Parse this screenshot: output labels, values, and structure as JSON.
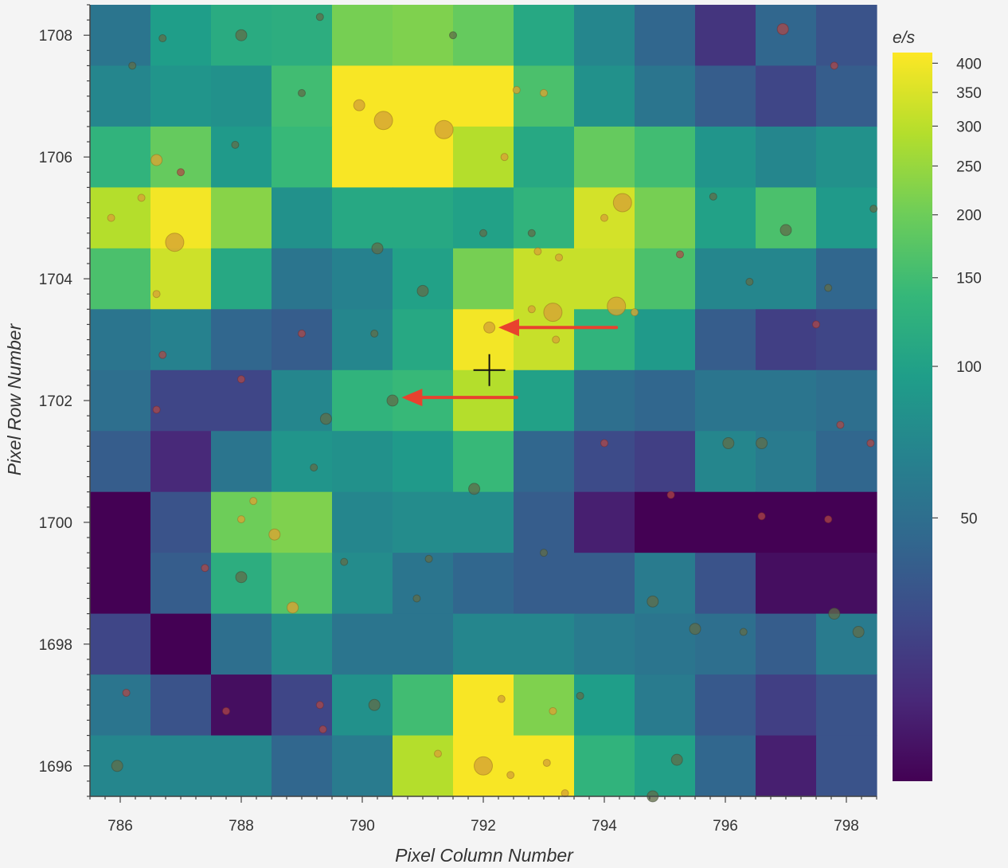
{
  "chart_data": {
    "type": "heatmap",
    "title": "",
    "xlabel": "Pixel Column Number",
    "ylabel": "Pixel Row Number",
    "colorbar_label": "e/s",
    "colormap": "viridis",
    "color_scale": "log",
    "clim": [
      15,
      420
    ],
    "x_range": [
      785.5,
      798.5
    ],
    "y_range": [
      1695.5,
      1708.5
    ],
    "x_start": 786,
    "y_start": 1696,
    "xticks": [
      786,
      788,
      790,
      792,
      794,
      796,
      798
    ],
    "xtick_labels": [
      "786",
      "788",
      "790",
      "792",
      "794",
      "796",
      "798"
    ],
    "yticks": [
      1696,
      1698,
      1700,
      1702,
      1704,
      1706,
      1708
    ],
    "ytick_labels": [
      "1696",
      "1698",
      "1700",
      "1702",
      "1704",
      "1706",
      "1708"
    ],
    "colorbar_ticks": [
      400,
      350,
      300,
      250,
      200,
      150,
      100,
      50
    ],
    "colorbar_tick_labels": [
      "400",
      "350",
      "300",
      "250",
      "200",
      "150",
      "100",
      "50"
    ],
    "z_rows_top_to_bottom": [
      [
        55,
        95,
        115,
        120,
        210,
        220,
        190,
        110,
        70,
        45,
        25,
        45,
        35
      ],
      [
        70,
        85,
        80,
        150,
        410,
        410,
        410,
        160,
        80,
        55,
        40,
        30,
        40
      ],
      [
        130,
        190,
        90,
        140,
        410,
        410,
        290,
        110,
        190,
        150,
        85,
        70,
        80
      ],
      [
        290,
        400,
        230,
        80,
        110,
        110,
        100,
        130,
        340,
        210,
        100,
        160,
        90
      ],
      [
        160,
        330,
        110,
        55,
        65,
        100,
        210,
        320,
        320,
        160,
        70,
        70,
        45
      ],
      [
        55,
        65,
        45,
        40,
        70,
        110,
        400,
        320,
        130,
        90,
        40,
        28,
        30
      ],
      [
        50,
        30,
        30,
        70,
        130,
        140,
        290,
        100,
        50,
        45,
        55,
        55,
        50
      ],
      [
        40,
        22,
        55,
        85,
        80,
        90,
        140,
        45,
        32,
        28,
        70,
        60,
        45
      ],
      [
        14,
        35,
        200,
        220,
        70,
        75,
        75,
        40,
        20,
        14,
        14,
        14,
        14
      ],
      [
        14,
        40,
        120,
        170,
        75,
        55,
        45,
        40,
        40,
        60,
        35,
        17,
        17
      ],
      [
        30,
        14,
        50,
        75,
        55,
        55,
        70,
        70,
        60,
        55,
        50,
        40,
        60
      ],
      [
        55,
        35,
        17,
        30,
        80,
        150,
        410,
        220,
        95,
        60,
        38,
        28,
        35
      ],
      [
        70,
        70,
        70,
        45,
        60,
        290,
        410,
        410,
        130,
        100,
        45,
        20,
        35
      ]
    ],
    "stars": [
      {
        "col": 792.1,
        "row": 1703.2,
        "size": "medium",
        "tone": "bright"
      },
      {
        "col": 790.5,
        "row": 1702.0,
        "size": "medium",
        "tone": "dark"
      },
      {
        "col": 790.35,
        "row": 1706.6,
        "size": "large",
        "tone": "bright"
      },
      {
        "col": 791.35,
        "row": 1706.45,
        "size": "large",
        "tone": "bright"
      },
      {
        "col": 789.95,
        "row": 1706.85,
        "size": "medium",
        "tone": "bright"
      },
      {
        "col": 793.0,
        "row": 1707.05,
        "size": "small",
        "tone": "bright"
      },
      {
        "col": 792.55,
        "row": 1707.1,
        "size": "small",
        "tone": "bright"
      },
      {
        "col": 792.35,
        "row": 1706.0,
        "size": "small",
        "tone": "bright"
      },
      {
        "col": 786.9,
        "row": 1704.6,
        "size": "large",
        "tone": "bright"
      },
      {
        "col": 786.6,
        "row": 1705.95,
        "size": "medium",
        "tone": "bright"
      },
      {
        "col": 786.35,
        "row": 1705.33,
        "size": "small",
        "tone": "bright"
      },
      {
        "col": 785.85,
        "row": 1705.0,
        "size": "small",
        "tone": "bright"
      },
      {
        "col": 786.6,
        "row": 1703.75,
        "size": "small",
        "tone": "bright"
      },
      {
        "col": 794.3,
        "row": 1705.25,
        "size": "large",
        "tone": "bright"
      },
      {
        "col": 794.2,
        "row": 1703.55,
        "size": "large",
        "tone": "bright"
      },
      {
        "col": 793.15,
        "row": 1703.45,
        "size": "large",
        "tone": "bright"
      },
      {
        "col": 792.8,
        "row": 1703.5,
        "size": "small",
        "tone": "bright"
      },
      {
        "col": 793.2,
        "row": 1703.0,
        "size": "small",
        "tone": "bright"
      },
      {
        "col": 793.25,
        "row": 1704.35,
        "size": "small",
        "tone": "bright"
      },
      {
        "col": 792.9,
        "row": 1704.45,
        "size": "small",
        "tone": "bright"
      },
      {
        "col": 792.8,
        "row": 1704.75,
        "size": "small",
        "tone": "dark"
      },
      {
        "col": 792.0,
        "row": 1704.75,
        "size": "small",
        "tone": "dark"
      },
      {
        "col": 794.0,
        "row": 1705.0,
        "size": "small",
        "tone": "bright"
      },
      {
        "col": 791.0,
        "row": 1703.8,
        "size": "medium",
        "tone": "dark"
      },
      {
        "col": 790.25,
        "row": 1704.5,
        "size": "medium",
        "tone": "dark"
      },
      {
        "col": 789.4,
        "row": 1701.7,
        "size": "medium",
        "tone": "dark"
      },
      {
        "col": 790.2,
        "row": 1703.1,
        "size": "small",
        "tone": "dark"
      },
      {
        "col": 791.85,
        "row": 1700.55,
        "size": "medium",
        "tone": "dark"
      },
      {
        "col": 792.0,
        "row": 1696.0,
        "size": "large",
        "tone": "bright"
      },
      {
        "col": 792.45,
        "row": 1695.85,
        "size": "small",
        "tone": "bright"
      },
      {
        "col": 791.25,
        "row": 1696.2,
        "size": "small",
        "tone": "bright"
      },
      {
        "col": 793.05,
        "row": 1696.05,
        "size": "small",
        "tone": "bright"
      },
      {
        "col": 792.3,
        "row": 1697.1,
        "size": "small",
        "tone": "bright"
      },
      {
        "col": 793.15,
        "row": 1696.9,
        "size": "small",
        "tone": "bright"
      },
      {
        "col": 793.35,
        "row": 1695.55,
        "size": "small",
        "tone": "bright"
      },
      {
        "col": 788.55,
        "row": 1699.8,
        "size": "medium",
        "tone": "bright"
      },
      {
        "col": 788.85,
        "row": 1698.6,
        "size": "medium",
        "tone": "bright"
      },
      {
        "col": 788.0,
        "row": 1700.05,
        "size": "small",
        "tone": "bright"
      },
      {
        "col": 788.2,
        "row": 1700.35,
        "size": "small",
        "tone": "bright"
      },
      {
        "col": 788.0,
        "row": 1699.1,
        "size": "medium",
        "tone": "dark"
      },
      {
        "col": 789.0,
        "row": 1707.05,
        "size": "small",
        "tone": "dark"
      },
      {
        "col": 787.9,
        "row": 1706.2,
        "size": "small",
        "tone": "dark"
      },
      {
        "col": 786.7,
        "row": 1707.95,
        "size": "small",
        "tone": "dark"
      },
      {
        "col": 788.0,
        "row": 1708.0,
        "size": "medium",
        "tone": "dark"
      },
      {
        "col": 786.2,
        "row": 1707.5,
        "size": "small",
        "tone": "dark"
      },
      {
        "col": 789.3,
        "row": 1708.3,
        "size": "small",
        "tone": "dark"
      },
      {
        "col": 797.0,
        "row": 1704.8,
        "size": "medium",
        "tone": "dark"
      },
      {
        "col": 796.95,
        "row": 1708.1,
        "size": "medium",
        "tone": "red"
      },
      {
        "col": 797.8,
        "row": 1707.5,
        "size": "small",
        "tone": "red"
      },
      {
        "col": 797.9,
        "row": 1701.6,
        "size": "small",
        "tone": "red"
      },
      {
        "col": 798.4,
        "row": 1701.3,
        "size": "small",
        "tone": "red"
      },
      {
        "col": 797.7,
        "row": 1700.05,
        "size": "small",
        "tone": "red"
      },
      {
        "col": 796.6,
        "row": 1700.1,
        "size": "small",
        "tone": "red"
      },
      {
        "col": 795.25,
        "row": 1704.4,
        "size": "small",
        "tone": "red"
      },
      {
        "col": 797.5,
        "row": 1703.25,
        "size": "small",
        "tone": "red"
      },
      {
        "col": 797.8,
        "row": 1698.5,
        "size": "medium",
        "tone": "dark"
      },
      {
        "col": 798.2,
        "row": 1698.2,
        "size": "medium",
        "tone": "dark"
      },
      {
        "col": 796.05,
        "row": 1701.3,
        "size": "medium",
        "tone": "dark"
      },
      {
        "col": 796.6,
        "row": 1701.3,
        "size": "medium",
        "tone": "dark"
      },
      {
        "col": 794.8,
        "row": 1698.7,
        "size": "medium",
        "tone": "dark"
      },
      {
        "col": 795.5,
        "row": 1698.25,
        "size": "medium",
        "tone": "dark"
      },
      {
        "col": 794.8,
        "row": 1695.5,
        "size": "medium",
        "tone": "dark"
      },
      {
        "col": 795.2,
        "row": 1696.1,
        "size": "medium",
        "tone": "dark"
      },
      {
        "col": 790.2,
        "row": 1697.0,
        "size": "medium",
        "tone": "dark"
      },
      {
        "col": 785.95,
        "row": 1696.0,
        "size": "medium",
        "tone": "dark"
      },
      {
        "col": 786.1,
        "row": 1697.2,
        "size": "small",
        "tone": "red"
      },
      {
        "col": 787.75,
        "row": 1696.9,
        "size": "small",
        "tone": "red"
      },
      {
        "col": 789.3,
        "row": 1697.0,
        "size": "small",
        "tone": "red"
      },
      {
        "col": 789.35,
        "row": 1696.6,
        "size": "small",
        "tone": "red"
      },
      {
        "col": 787.4,
        "row": 1699.25,
        "size": "small",
        "tone": "red"
      },
      {
        "col": 787.0,
        "row": 1705.75,
        "size": "small",
        "tone": "red"
      },
      {
        "col": 788.0,
        "row": 1702.35,
        "size": "small",
        "tone": "red"
      },
      {
        "col": 789.0,
        "row": 1703.1,
        "size": "small",
        "tone": "red"
      },
      {
        "col": 786.7,
        "row": 1702.75,
        "size": "small",
        "tone": "red"
      },
      {
        "col": 786.6,
        "row": 1701.85,
        "size": "small",
        "tone": "red"
      },
      {
        "col": 794.0,
        "row": 1701.3,
        "size": "small",
        "tone": "red"
      },
      {
        "col": 795.1,
        "row": 1700.45,
        "size": "small",
        "tone": "red"
      },
      {
        "col": 794.5,
        "row": 1703.45,
        "size": "small",
        "tone": "bright"
      },
      {
        "col": 791.5,
        "row": 1708.0,
        "size": "small",
        "tone": "dark"
      },
      {
        "col": 789.2,
        "row": 1700.9,
        "size": "small",
        "tone": "dark"
      },
      {
        "col": 789.7,
        "row": 1699.35,
        "size": "small",
        "tone": "dark"
      },
      {
        "col": 791.1,
        "row": 1699.4,
        "size": "small",
        "tone": "dark"
      },
      {
        "col": 790.9,
        "row": 1698.75,
        "size": "small",
        "tone": "dark"
      },
      {
        "col": 793.0,
        "row": 1699.5,
        "size": "small",
        "tone": "dark"
      },
      {
        "col": 793.6,
        "row": 1697.15,
        "size": "small",
        "tone": "dark"
      },
      {
        "col": 796.3,
        "row": 1698.2,
        "size": "small",
        "tone": "dark"
      },
      {
        "col": 798.45,
        "row": 1705.15,
        "size": "small",
        "tone": "dark"
      },
      {
        "col": 795.8,
        "row": 1705.35,
        "size": "small",
        "tone": "dark"
      },
      {
        "col": 796.4,
        "row": 1703.95,
        "size": "small",
        "tone": "dark"
      },
      {
        "col": 797.7,
        "row": 1703.85,
        "size": "small",
        "tone": "dark"
      }
    ],
    "annotations": [
      {
        "type": "arrow",
        "from": [
          794.2,
          1703.2
        ],
        "to": [
          792.25,
          1703.2
        ],
        "color": "#e8422e"
      },
      {
        "type": "arrow",
        "from": [
          792.55,
          1702.05
        ],
        "to": [
          790.65,
          1702.05
        ],
        "color": "#e8422e"
      },
      {
        "type": "crosshair",
        "col": 792.1,
        "row": 1702.5,
        "color": "#111111"
      }
    ]
  }
}
